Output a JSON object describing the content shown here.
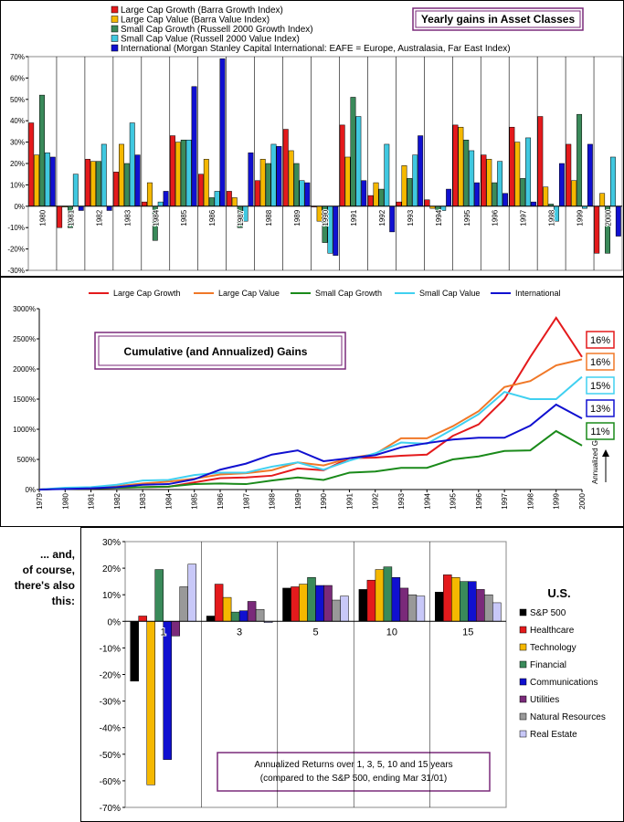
{
  "chart_data": [
    {
      "type": "bar",
      "title": "Yearly gains in Asset Classes",
      "categories": [
        "1980",
        "1981",
        "1982",
        "1983",
        "1984",
        "1985",
        "1986",
        "1987",
        "1988",
        "1989",
        "1990",
        "1991",
        "1992",
        "1993",
        "1994",
        "1995",
        "1996",
        "1997",
        "1998",
        "1999",
        "2000"
      ],
      "ylim": [
        -30,
        70
      ],
      "yticks": [
        "-30%",
        "-20%",
        "-10%",
        "0%",
        "10%",
        "20%",
        "30%",
        "40%",
        "50%",
        "60%",
        "70%"
      ],
      "legend_position": "top-left",
      "series": [
        {
          "name": "Large Cap Growth (Barra Growth Index)",
          "color": "#e41a1c",
          "values": [
            39,
            -10,
            22,
            16,
            2,
            33,
            15,
            7,
            12,
            36,
            0,
            38,
            5,
            2,
            3,
            38,
            24,
            37,
            42,
            29,
            -22
          ]
        },
        {
          "name": "Large Cap Value (Barra Value Index)",
          "color": "#f5b800",
          "values": [
            24,
            0,
            21,
            29,
            11,
            30,
            22,
            4,
            22,
            26,
            -7,
            23,
            11,
            19,
            -1,
            37,
            22,
            30,
            9,
            12,
            6
          ]
        },
        {
          "name": "Small Cap Growth (Russell 2000 Growth Index)",
          "color": "#3a8a5a",
          "values": [
            52,
            -10,
            21,
            20,
            -16,
            31,
            4,
            -10,
            20,
            20,
            -17,
            51,
            8,
            13,
            -2,
            31,
            11,
            13,
            1,
            43,
            -22
          ]
        },
        {
          "name": "Small Cap Value (Russell 2000 Value Index)",
          "color": "#40c8e0",
          "values": [
            25,
            15,
            29,
            39,
            2,
            31,
            7,
            -7,
            29,
            12,
            -22,
            42,
            29,
            24,
            -2,
            26,
            21,
            32,
            -7,
            -1,
            23
          ]
        },
        {
          "name": "International (Morgan Stanley Capital International: EAFE = Europe, Australasia, Far East  Index)",
          "color": "#1010d0",
          "values": [
            23,
            -2,
            -2,
            24,
            7,
            56,
            69,
            25,
            28,
            11,
            -23,
            12,
            -12,
            33,
            8,
            11,
            6,
            2,
            20,
            29,
            -14
          ]
        }
      ]
    },
    {
      "type": "line",
      "title": "Cumulative (and Annualized) Gains",
      "x": [
        "1979",
        "1980",
        "1981",
        "1982",
        "1983",
        "1984",
        "1985",
        "1986",
        "1987",
        "1988",
        "1989",
        "1990",
        "1991",
        "1992",
        "1993",
        "1994",
        "1995",
        "1996",
        "1997",
        "1998",
        "1999",
        "2000"
      ],
      "ylim": [
        0,
        3000
      ],
      "yticks": [
        "0%",
        "500%",
        "1000%",
        "1500%",
        "2000%",
        "2500%",
        "3000%"
      ],
      "legend_position": "top",
      "annualized_label": "Annualized Gains",
      "series": [
        {
          "name": "Large Cap Growth",
          "color": "#e41a1c",
          "annualized": "16%",
          "values": [
            0,
            15,
            18,
            30,
            40,
            45,
            120,
            190,
            200,
            230,
            350,
            320,
            520,
            530,
            560,
            580,
            890,
            1080,
            1500,
            2200,
            2850,
            2200
          ]
        },
        {
          "name": "Large Cap Value",
          "color": "#f07828",
          "annualized": "16%",
          "values": [
            0,
            20,
            25,
            55,
            100,
            130,
            180,
            250,
            270,
            320,
            450,
            400,
            520,
            590,
            850,
            850,
            1050,
            1300,
            1700,
            1800,
            2060,
            2160
          ]
        },
        {
          "name": "Small Cap Growth",
          "color": "#1a8a1a",
          "annualized": "11%",
          "values": [
            0,
            15,
            20,
            30,
            40,
            50,
            90,
            100,
            90,
            150,
            200,
            160,
            280,
            300,
            360,
            360,
            500,
            550,
            640,
            650,
            970,
            730
          ]
        },
        {
          "name": "Small Cap Value",
          "color": "#40d0f0",
          "annualized": "15%",
          "values": [
            0,
            30,
            40,
            80,
            150,
            160,
            240,
            280,
            280,
            380,
            450,
            330,
            480,
            600,
            780,
            760,
            1000,
            1250,
            1620,
            1500,
            1500,
            1870
          ]
        },
        {
          "name": "International",
          "color": "#1010d0",
          "annualized": "13%",
          "values": [
            0,
            10,
            20,
            40,
            80,
            90,
            170,
            330,
            430,
            580,
            650,
            470,
            520,
            570,
            700,
            770,
            830,
            860,
            860,
            1060,
            1410,
            1180
          ]
        }
      ],
      "label_order": [
        "Large Cap Growth",
        "Large Cap Value",
        "Small Cap Value",
        "International",
        "Small Cap Growth"
      ]
    },
    {
      "type": "bar",
      "categories": [
        "1",
        "3",
        "5",
        "10",
        "15"
      ],
      "ylim": [
        -70,
        30
      ],
      "yticks": [
        "-70%",
        "-60%",
        "-50%",
        "-40%",
        "-30%",
        "-20%",
        "-10%",
        "0%",
        "10%",
        "20%",
        "30%"
      ],
      "legend_title": "U.S.",
      "legend_position": "right",
      "series": [
        {
          "name": "S&P 500",
          "color": "#000000",
          "values": [
            -22.5,
            2,
            12.5,
            12,
            11
          ]
        },
        {
          "name": "Healthcare",
          "color": "#e41a1c",
          "values": [
            2,
            14,
            13,
            15.5,
            17.5
          ]
        },
        {
          "name": "Technology",
          "color": "#f5b800",
          "values": [
            -61.5,
            9,
            14,
            19.5,
            16.5
          ]
        },
        {
          "name": "Financial",
          "color": "#3a8a5a",
          "values": [
            19.5,
            3.5,
            16.5,
            20.5,
            15
          ]
        },
        {
          "name": "Communications",
          "color": "#1010d0",
          "values": [
            -52,
            4,
            13.5,
            16.5,
            15
          ]
        },
        {
          "name": "Utilities",
          "color": "#7a2a7a",
          "values": [
            -5.5,
            7.5,
            13.5,
            12.5,
            12
          ]
        },
        {
          "name": "Natural Resources",
          "color": "#999999",
          "values": [
            13,
            4.5,
            8,
            10,
            10
          ]
        },
        {
          "name": "Real Estate",
          "color": "#c8c8f8",
          "values": [
            21.5,
            -0.5,
            9.5,
            9.5,
            7
          ]
        }
      ]
    }
  ],
  "text": {
    "lead_1": "... and,",
    "lead_2": "of course,",
    "lead_3": "there's also",
    "lead_4": "this:",
    "box_line_1": "Annualized Returns over 1, 3, 5, 10 and 15 years",
    "box_line_2": "(compared to the S&P 500, ending Mar 31/01)"
  }
}
